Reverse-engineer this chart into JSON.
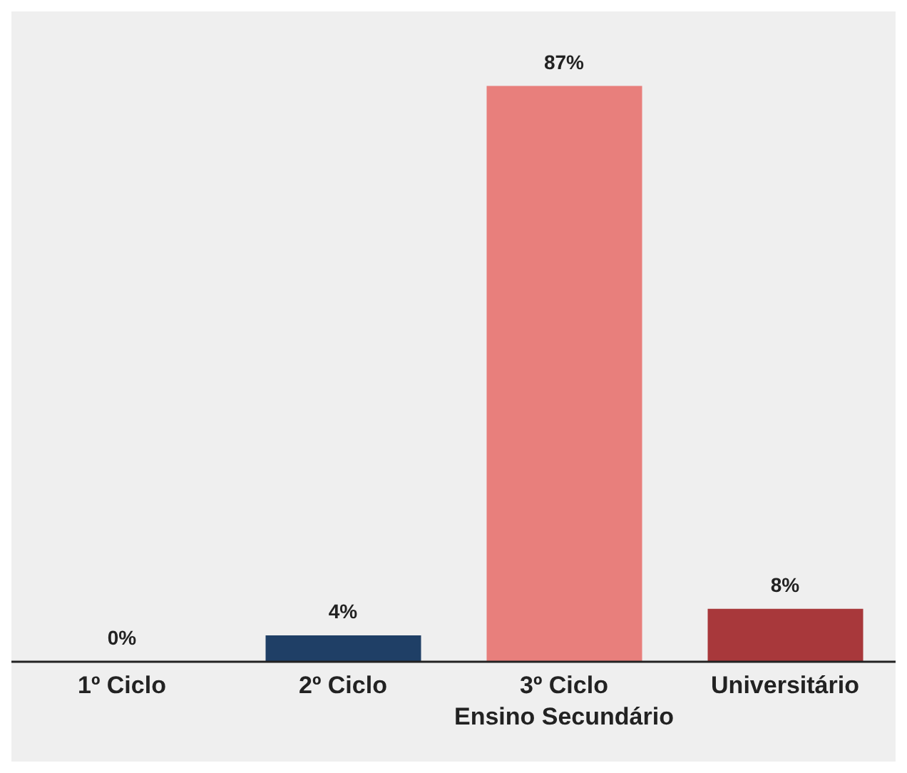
{
  "chart_data": {
    "type": "bar",
    "categories": [
      "1º Ciclo",
      "2º Ciclo",
      "3º Ciclo\nEnsino Secundário",
      "Universitário"
    ],
    "values": [
      0,
      4,
      87,
      8
    ],
    "colors": [
      "#1f3f66",
      "#1f3f66",
      "#e87f7c",
      "#a8383b"
    ],
    "value_labels": [
      "0%",
      "4%",
      "87%",
      "8%"
    ],
    "grid": false,
    "legend": false
  }
}
